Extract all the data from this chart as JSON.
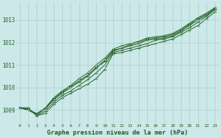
{
  "xlabel": "Graphe pression niveau de la mer (hPa)",
  "background_color": "#cce8e8",
  "grid_color": "#aacccc",
  "line_color": "#1e5c1e",
  "xlim": [
    -0.5,
    23.5
  ],
  "ylim": [
    1008.4,
    1013.8
  ],
  "yticks": [
    1009,
    1010,
    1011,
    1012,
    1013
  ],
  "xticks": [
    0,
    1,
    2,
    3,
    4,
    5,
    6,
    7,
    8,
    9,
    10,
    11,
    12,
    13,
    14,
    15,
    16,
    17,
    18,
    19,
    20,
    21,
    22,
    23
  ],
  "lines": [
    [
      1009.1,
      1009.1,
      1008.75,
      1008.85,
      1009.25,
      1009.55,
      1009.75,
      1009.95,
      1010.15,
      1010.4,
      1010.8,
      1011.5,
      1011.55,
      1011.65,
      1011.75,
      1011.85,
      1011.95,
      1012.05,
      1012.15,
      1012.35,
      1012.55,
      1012.75,
      1013.05,
      1013.35
    ],
    [
      1009.1,
      1009.05,
      1008.75,
      1008.95,
      1009.35,
      1009.65,
      1009.85,
      1010.1,
      1010.35,
      1010.65,
      1011.0,
      1011.55,
      1011.65,
      1011.75,
      1011.85,
      1011.95,
      1012.1,
      1012.15,
      1012.25,
      1012.45,
      1012.65,
      1012.9,
      1013.15,
      1013.45
    ],
    [
      1009.1,
      1009.0,
      1008.8,
      1009.05,
      1009.45,
      1009.75,
      1010.0,
      1010.25,
      1010.5,
      1010.85,
      1011.15,
      1011.6,
      1011.75,
      1011.85,
      1011.95,
      1012.1,
      1012.15,
      1012.2,
      1012.3,
      1012.5,
      1012.75,
      1013.0,
      1013.2,
      1013.5
    ],
    [
      1009.1,
      1009.0,
      1008.8,
      1009.05,
      1009.5,
      1009.8,
      1010.05,
      1010.3,
      1010.55,
      1010.9,
      1011.2,
      1011.65,
      1011.75,
      1011.9,
      1012.0,
      1012.15,
      1012.2,
      1012.25,
      1012.35,
      1012.55,
      1012.8,
      1013.05,
      1013.25,
      1013.5
    ],
    [
      1009.1,
      1009.0,
      1008.85,
      1009.1,
      1009.55,
      1009.85,
      1010.1,
      1010.4,
      1010.65,
      1011.0,
      1011.3,
      1011.7,
      1011.85,
      1011.95,
      1012.05,
      1012.2,
      1012.25,
      1012.3,
      1012.4,
      1012.6,
      1012.85,
      1013.1,
      1013.3,
      1013.55
    ]
  ]
}
